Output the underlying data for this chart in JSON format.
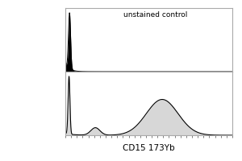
{
  "background_color": "#ffffff",
  "border_color": "#aaaaaa",
  "top_panel": {
    "label": "unstained control",
    "label_fontsize": 6.5,
    "curve_color": "#000000",
    "fill_color": "#000000"
  },
  "bottom_panel": {
    "curve_color": "#000000",
    "fill_color": "#d0d0d0",
    "xlabel": "CD15 173Yb",
    "xlabel_fontsize": 7.5
  },
  "xlim": [
    0,
    1
  ],
  "tick_count": 30
}
